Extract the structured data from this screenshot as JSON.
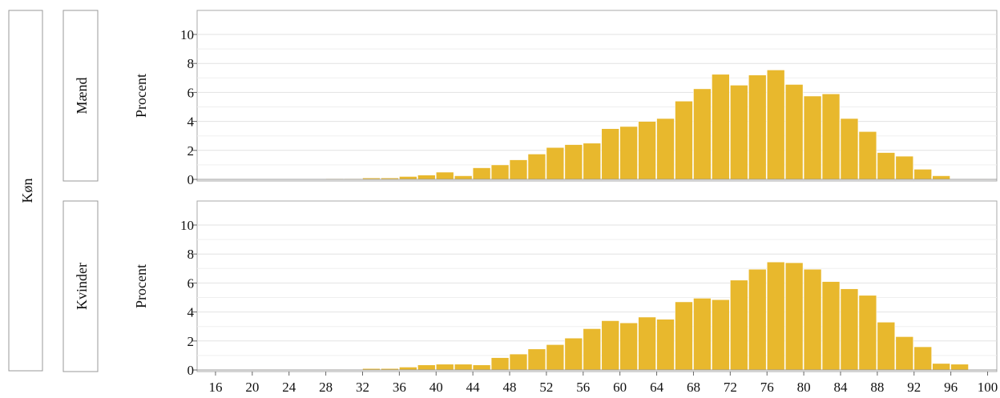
{
  "chart_data": {
    "type": "bar",
    "outer_label": "Køn",
    "ylabel": "Procent",
    "ylim": [
      0,
      10
    ],
    "yticks": [
      0,
      2,
      4,
      6,
      8,
      10
    ],
    "xlim": [
      14,
      101
    ],
    "xticks": [
      16,
      20,
      24,
      28,
      32,
      36,
      40,
      44,
      48,
      52,
      56,
      60,
      64,
      68,
      72,
      76,
      80,
      84,
      88,
      92,
      96,
      100
    ],
    "bin_width": 2,
    "bar_color": "#E8B82D",
    "grid": true,
    "panels": [
      {
        "label": "Mænd",
        "bars": [
          {
            "x": 28,
            "y": 0.05
          },
          {
            "x": 30,
            "y": 0.05
          },
          {
            "x": 32,
            "y": 0.1
          },
          {
            "x": 34,
            "y": 0.1
          },
          {
            "x": 36,
            "y": 0.2
          },
          {
            "x": 38,
            "y": 0.3
          },
          {
            "x": 40,
            "y": 0.5
          },
          {
            "x": 42,
            "y": 0.25
          },
          {
            "x": 44,
            "y": 0.8
          },
          {
            "x": 46,
            "y": 1.0
          },
          {
            "x": 48,
            "y": 1.35
          },
          {
            "x": 50,
            "y": 1.75
          },
          {
            "x": 52,
            "y": 2.2
          },
          {
            "x": 54,
            "y": 2.4
          },
          {
            "x": 56,
            "y": 2.5
          },
          {
            "x": 58,
            "y": 3.5
          },
          {
            "x": 60,
            "y": 3.65
          },
          {
            "x": 62,
            "y": 4.0
          },
          {
            "x": 64,
            "y": 4.2
          },
          {
            "x": 66,
            "y": 5.4
          },
          {
            "x": 68,
            "y": 6.25
          },
          {
            "x": 70,
            "y": 7.25
          },
          {
            "x": 72,
            "y": 6.5
          },
          {
            "x": 74,
            "y": 7.2
          },
          {
            "x": 76,
            "y": 7.55
          },
          {
            "x": 78,
            "y": 6.55
          },
          {
            "x": 80,
            "y": 5.75
          },
          {
            "x": 82,
            "y": 5.9
          },
          {
            "x": 84,
            "y": 4.2
          },
          {
            "x": 86,
            "y": 3.3
          },
          {
            "x": 88,
            "y": 1.85
          },
          {
            "x": 90,
            "y": 1.6
          },
          {
            "x": 92,
            "y": 0.7
          },
          {
            "x": 94,
            "y": 0.25
          },
          {
            "x": 98,
            "y": 0.03
          }
        ]
      },
      {
        "label": "Kvinder",
        "bars": [
          {
            "x": 20,
            "y": 0.03
          },
          {
            "x": 28,
            "y": 0.03
          },
          {
            "x": 32,
            "y": 0.1
          },
          {
            "x": 34,
            "y": 0.1
          },
          {
            "x": 36,
            "y": 0.2
          },
          {
            "x": 38,
            "y": 0.35
          },
          {
            "x": 40,
            "y": 0.4
          },
          {
            "x": 42,
            "y": 0.4
          },
          {
            "x": 44,
            "y": 0.35
          },
          {
            "x": 46,
            "y": 0.85
          },
          {
            "x": 48,
            "y": 1.1
          },
          {
            "x": 50,
            "y": 1.45
          },
          {
            "x": 52,
            "y": 1.75
          },
          {
            "x": 54,
            "y": 2.2
          },
          {
            "x": 56,
            "y": 2.85
          },
          {
            "x": 58,
            "y": 3.4
          },
          {
            "x": 60,
            "y": 3.25
          },
          {
            "x": 62,
            "y": 3.65
          },
          {
            "x": 64,
            "y": 3.5
          },
          {
            "x": 66,
            "y": 4.7
          },
          {
            "x": 68,
            "y": 4.95
          },
          {
            "x": 70,
            "y": 4.85
          },
          {
            "x": 72,
            "y": 6.2
          },
          {
            "x": 74,
            "y": 6.95
          },
          {
            "x": 76,
            "y": 7.45
          },
          {
            "x": 78,
            "y": 7.4
          },
          {
            "x": 80,
            "y": 6.95
          },
          {
            "x": 82,
            "y": 6.1
          },
          {
            "x": 84,
            "y": 5.6
          },
          {
            "x": 86,
            "y": 5.15
          },
          {
            "x": 88,
            "y": 3.3
          },
          {
            "x": 90,
            "y": 2.3
          },
          {
            "x": 92,
            "y": 1.6
          },
          {
            "x": 94,
            "y": 0.45
          },
          {
            "x": 96,
            "y": 0.4
          }
        ]
      }
    ]
  }
}
